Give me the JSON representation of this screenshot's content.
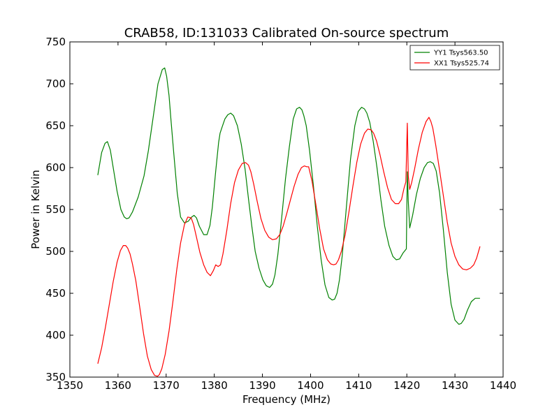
{
  "chart_data": {
    "type": "line",
    "title": "CRAB58, ID:131033 Calibrated On-source spectrum",
    "xlabel": "Frequency (MHz)",
    "ylabel": "Power in Kelvin",
    "xlim": [
      1350,
      1440
    ],
    "ylim": [
      350,
      750
    ],
    "xticks": [
      1350,
      1360,
      1370,
      1380,
      1390,
      1400,
      1410,
      1420,
      1430,
      1440
    ],
    "yticks": [
      350,
      400,
      450,
      500,
      550,
      600,
      650,
      700,
      750
    ],
    "grid": false,
    "legend": "top-right",
    "series": [
      {
        "name": "YY1 Tsys563.50",
        "color": "#008000",
        "x": [
          1355.8,
          1356.6,
          1357.3,
          1357.8,
          1358.4,
          1359.0,
          1359.8,
          1360.6,
          1361.3,
          1361.8,
          1362.3,
          1363.0,
          1364.2,
          1365.4,
          1366.3,
          1367.3,
          1368.3,
          1369.2,
          1369.7,
          1370.1,
          1370.6,
          1371.0,
          1371.6,
          1372.3,
          1373.0,
          1373.8,
          1374.6,
          1375.3,
          1375.8,
          1376.3,
          1376.9,
          1377.8,
          1378.5,
          1379.1,
          1379.6,
          1380.3,
          1380.9,
          1381.2,
          1381.6,
          1382.2,
          1382.8,
          1383.4,
          1384.0,
          1384.8,
          1385.6,
          1386.4,
          1387.1,
          1387.8,
          1388.5,
          1389.3,
          1390.1,
          1390.8,
          1391.5,
          1392.1,
          1392.6,
          1393.2,
          1394.0,
          1394.8,
          1395.6,
          1396.4,
          1397.1,
          1397.7,
          1398.2,
          1398.6,
          1399.1,
          1399.8,
          1400.6,
          1401.4,
          1402.2,
          1403.0,
          1403.8,
          1404.5,
          1405.0,
          1405.5,
          1406.0,
          1406.6,
          1407.4,
          1408.3,
          1409.2,
          1409.9,
          1410.6,
          1411.2,
          1411.7,
          1412.3,
          1413.0,
          1413.8,
          1414.6,
          1415.4,
          1416.3,
          1417.1,
          1417.8,
          1418.5,
          1419.2,
          1419.9,
          1420.1,
          1420.3,
          1420.6,
          1421.2,
          1422.0,
          1422.8,
          1423.6,
          1424.3,
          1424.9,
          1425.5,
          1426.1,
          1426.8,
          1427.6,
          1428.4,
          1429.2,
          1430.0,
          1430.8,
          1431.3,
          1431.9,
          1432.6,
          1433.4,
          1434.2,
          1435.2
        ],
        "values": [
          591,
          618,
          629,
          631,
          621,
          600,
          572,
          550,
          541,
          539,
          540,
          547,
          565,
          590,
          620,
          660,
          700,
          717,
          719,
          709,
          686,
          657,
          616,
          570,
          541,
          534,
          536,
          541,
          543,
          540,
          530,
          520,
          520,
          531,
          553,
          596,
          630,
          641,
          648,
          658,
          663,
          665,
          662,
          650,
          628,
          598,
          563,
          530,
          500,
          480,
          466,
          459,
          457,
          461,
          472,
          496,
          540,
          587,
          625,
          658,
          670,
          672,
          669,
          662,
          650,
          620,
          578,
          530,
          490,
          460,
          445,
          442,
          443,
          450,
          466,
          496,
          550,
          610,
          650,
          667,
          672,
          670,
          665,
          654,
          632,
          600,
          562,
          530,
          507,
          494,
          490,
          491,
          498,
          503,
          595,
          560,
          528,
          543,
          568,
          587,
          600,
          606,
          607,
          605,
          596,
          570,
          525,
          475,
          437,
          418,
          413,
          414,
          419,
          430,
          440,
          444,
          444
        ]
      },
      {
        "name": "XX1 Tsys525.74",
        "color": "#ff0000",
        "x": [
          1355.8,
          1356.6,
          1357.4,
          1358.2,
          1359.0,
          1359.8,
          1360.5,
          1361.1,
          1361.6,
          1362.0,
          1362.5,
          1363.0,
          1363.7,
          1364.5,
          1365.3,
          1366.1,
          1366.9,
          1367.6,
          1368.2,
          1368.6,
          1369.1,
          1369.8,
          1370.6,
          1371.4,
          1372.2,
          1373.0,
          1373.8,
          1374.5,
          1375.2,
          1375.7,
          1376.3,
          1377.0,
          1377.8,
          1378.5,
          1379.2,
          1379.8,
          1380.3,
          1380.8,
          1381.3,
          1381.8,
          1382.6,
          1383.4,
          1384.2,
          1385.0,
          1385.8,
          1386.5,
          1387.1,
          1387.6,
          1388.2,
          1388.9,
          1389.7,
          1390.5,
          1391.3,
          1392.1,
          1392.9,
          1393.6,
          1394.3,
          1395.0,
          1395.8,
          1396.6,
          1397.4,
          1398.1,
          1398.7,
          1399.2,
          1399.6,
          1400.3,
          1401.1,
          1401.9,
          1402.7,
          1403.5,
          1404.2,
          1404.8,
          1405.3,
          1405.8,
          1406.4,
          1407.2,
          1408.0,
          1408.8,
          1409.6,
          1410.4,
          1411.2,
          1411.9,
          1412.6,
          1413.1,
          1413.7,
          1414.4,
          1415.2,
          1416.0,
          1416.8,
          1417.6,
          1418.3,
          1418.9,
          1419.4,
          1419.8,
          1420.1,
          1420.3,
          1420.6,
          1421.0,
          1421.6,
          1422.4,
          1423.2,
          1424.0,
          1424.6,
          1425.0,
          1425.4,
          1426.0,
          1426.8,
          1427.6,
          1428.4,
          1429.2,
          1430.0,
          1430.8,
          1431.6,
          1432.4,
          1433.2,
          1433.9,
          1434.5,
          1435.2
        ],
        "values": [
          366,
          385,
          410,
          437,
          464,
          487,
          501,
          507,
          507,
          504,
          497,
          485,
          465,
          434,
          402,
          375,
          359,
          352,
          351,
          353,
          360,
          377,
          405,
          440,
          478,
          510,
          532,
          541,
          540,
          532,
          517,
          499,
          484,
          475,
          471,
          477,
          484,
          482,
          484,
          497,
          525,
          557,
          582,
          597,
          605,
          606,
          603,
          595,
          580,
          560,
          539,
          525,
          517,
          514,
          515,
          520,
          530,
          544,
          561,
          578,
          592,
          600,
          602,
          601,
          601,
          584,
          556,
          527,
          503,
          490,
          485,
          484,
          485,
          490,
          500,
          520,
          548,
          578,
          606,
          628,
          641,
          646,
          645,
          641,
          632,
          616,
          595,
          576,
          562,
          557,
          557,
          562,
          575,
          583,
          653,
          590,
          574,
          582,
          598,
          622,
          642,
          655,
          660,
          655,
          647,
          627,
          597,
          566,
          535,
          510,
          494,
          484,
          479,
          478,
          480,
          484,
          492,
          506
        ]
      }
    ]
  }
}
